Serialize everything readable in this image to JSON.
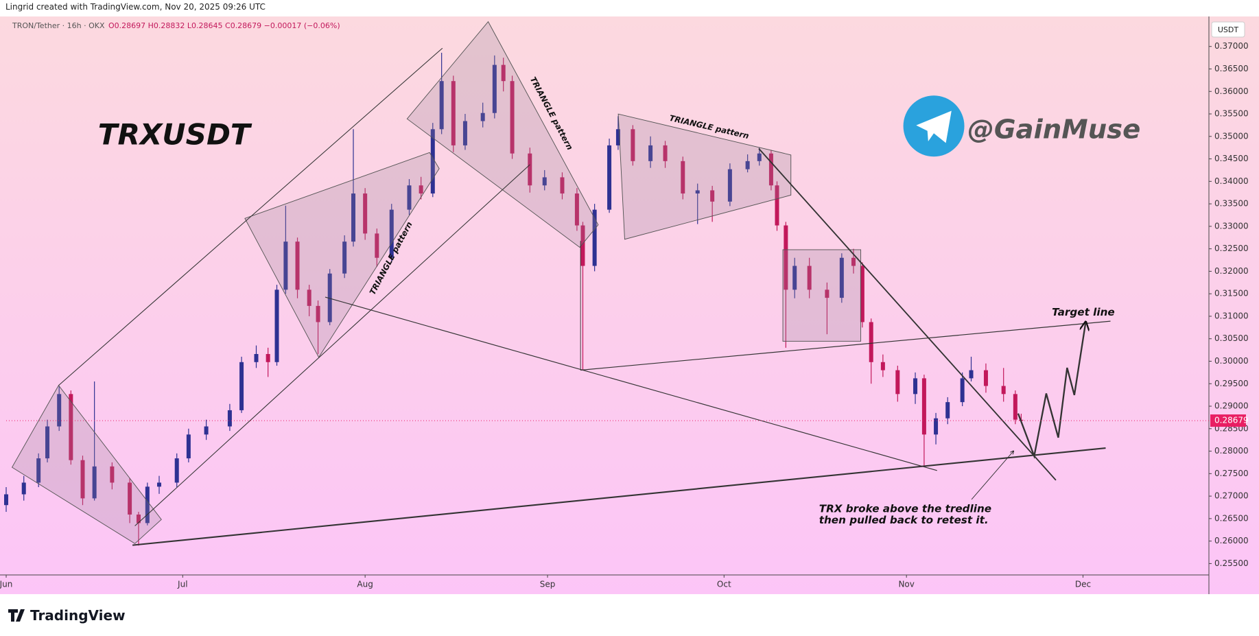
{
  "header": {
    "credit": "Lingrid created with TradingView.com, Nov 20, 2025 09:26 UTC"
  },
  "chart_data": {
    "type": "candlestick",
    "symbol": "TRON/Tether · 16h · OKX",
    "ohlc_text": "O0.28697 H0.28832 L0.28645 C0.28679 −0.00017 (−0.06%)",
    "currency": "USDT",
    "title": "TRXUSDT",
    "watermark": "@GainMuse",
    "annotations": [
      "TRIANGLE pattern",
      "TRIANGLE pattern",
      "TRIANGLE pattern",
      "Target line",
      "TRX broke above the tredline",
      "then pulled back to retest it."
    ],
    "up_color": "#2e3192",
    "down_color": "#c2185b",
    "x": [
      0,
      3,
      5.5,
      7,
      9,
      11,
      13,
      15,
      18,
      21,
      22.5,
      24,
      26,
      29,
      31,
      34,
      38,
      40,
      42.5,
      44.5,
      46,
      47.5,
      49.5,
      51.5,
      53,
      55,
      57.5,
      59,
      61,
      63,
      65.5,
      68.5,
      70.5,
      72.5,
      74,
      76,
      78,
      81,
      83,
      84.5,
      86,
      89,
      91.5,
      94.5,
      97,
      98,
      100,
      102.5,
      104,
      106.5,
      109.5,
      112,
      115,
      117.5,
      120,
      123,
      126,
      128,
      130,
      131,
      132.5,
      134,
      136.5,
      139.5,
      142,
      144,
      145.5,
      147,
      149,
      151.5,
      154.5,
      156,
      158,
      160,
      162.5,
      164,
      166.5,
      169.5,
      171.5,
      172.5
    ],
    "open": [
      0.268,
      0.2704,
      0.273,
      0.2784,
      0.2855,
      0.2927,
      0.278,
      0.2695,
      0.2766,
      0.273,
      0.2659,
      0.264,
      0.2721,
      0.273,
      0.2784,
      0.2837,
      0.2855,
      0.2891,
      0.2998,
      0.3016,
      0.2998,
      0.3159,
      0.3266,
      0.3159,
      0.3123,
      0.3087,
      0.3195,
      0.3266,
      0.3373,
      0.3284,
      0.323,
      0.3337,
      0.3391,
      0.3373,
      0.3516,
      0.3623,
      0.348,
      0.3534,
      0.3552,
      0.3659,
      0.3623,
      0.3462,
      0.3391,
      0.3409,
      0.3373,
      0.3302,
      0.3212,
      0.3337,
      0.348,
      0.3516,
      0.3445,
      0.348,
      0.3445,
      0.3373,
      0.338,
      0.3355,
      0.3427,
      0.3445,
      0.3462,
      0.3391,
      0.3302,
      0.3159,
      0.3212,
      0.3159,
      0.3141,
      0.323,
      0.3212,
      0.3087,
      0.2998,
      0.298,
      0.2927,
      0.2962,
      0.2837,
      0.2873,
      0.2909,
      0.2962,
      0.298,
      0.2945,
      0.2927,
      0.28697
    ],
    "high": [
      0.272,
      0.2745,
      0.2795,
      0.287,
      0.2945,
      0.2935,
      0.279,
      0.2955,
      0.2775,
      0.274,
      0.2665,
      0.273,
      0.2745,
      0.2795,
      0.285,
      0.287,
      0.2905,
      0.301,
      0.3035,
      0.303,
      0.317,
      0.3346,
      0.3275,
      0.317,
      0.3135,
      0.3205,
      0.328,
      0.3516,
      0.3385,
      0.3295,
      0.335,
      0.3405,
      0.341,
      0.353,
      0.3686,
      0.3635,
      0.355,
      0.3575,
      0.368,
      0.3675,
      0.3635,
      0.3475,
      0.3425,
      0.342,
      0.3385,
      0.331,
      0.335,
      0.3495,
      0.3545,
      0.3525,
      0.35,
      0.349,
      0.3455,
      0.3395,
      0.339,
      0.344,
      0.346,
      0.3475,
      0.347,
      0.34,
      0.331,
      0.323,
      0.323,
      0.3175,
      0.324,
      0.325,
      0.322,
      0.3095,
      0.3015,
      0.299,
      0.2975,
      0.297,
      0.2885,
      0.292,
      0.2975,
      0.301,
      0.2995,
      0.2985,
      0.2935,
      0.28832
    ],
    "low": [
      0.2665,
      0.269,
      0.272,
      0.2775,
      0.2845,
      0.277,
      0.268,
      0.269,
      0.2715,
      0.264,
      0.259,
      0.2635,
      0.2705,
      0.272,
      0.2775,
      0.2825,
      0.2845,
      0.2885,
      0.2985,
      0.2965,
      0.299,
      0.315,
      0.314,
      0.31,
      0.3016,
      0.308,
      0.3185,
      0.3255,
      0.327,
      0.321,
      0.322,
      0.3325,
      0.336,
      0.3365,
      0.3505,
      0.3465,
      0.347,
      0.352,
      0.354,
      0.36,
      0.345,
      0.3375,
      0.338,
      0.336,
      0.329,
      0.298,
      0.32,
      0.333,
      0.347,
      0.3435,
      0.343,
      0.343,
      0.336,
      0.3305,
      0.331,
      0.3345,
      0.342,
      0.3435,
      0.338,
      0.329,
      0.303,
      0.314,
      0.314,
      0.306,
      0.313,
      0.3195,
      0.3075,
      0.295,
      0.2965,
      0.291,
      0.2905,
      0.2766,
      0.2815,
      0.286,
      0.29,
      0.2955,
      0.293,
      0.291,
      0.286,
      0.28645
    ],
    "close": [
      0.2704,
      0.273,
      0.2784,
      0.2855,
      0.2927,
      0.278,
      0.2695,
      0.2766,
      0.273,
      0.2659,
      0.264,
      0.2721,
      0.273,
      0.2784,
      0.2837,
      0.2855,
      0.2891,
      0.2998,
      0.3016,
      0.2998,
      0.3159,
      0.3266,
      0.3159,
      0.3123,
      0.3087,
      0.3195,
      0.3266,
      0.3373,
      0.3284,
      0.323,
      0.3337,
      0.3391,
      0.3373,
      0.3516,
      0.3623,
      0.348,
      0.3534,
      0.3552,
      0.3659,
      0.3623,
      0.3462,
      0.3391,
      0.3409,
      0.3373,
      0.3302,
      0.3212,
      0.3337,
      0.348,
      0.3516,
      0.3445,
      0.348,
      0.3445,
      0.3373,
      0.338,
      0.3355,
      0.3427,
      0.3445,
      0.3462,
      0.3391,
      0.3302,
      0.3159,
      0.3212,
      0.3159,
      0.3141,
      0.323,
      0.3212,
      0.3087,
      0.2998,
      0.298,
      0.2927,
      0.2962,
      0.2837,
      0.2873,
      0.2909,
      0.2962,
      0.298,
      0.2945,
      0.2927,
      0.287,
      0.28679
    ],
    "last_price": 0.28679,
    "last_price_color": "#e91e63",
    "xlim": [
      0,
      204.4
    ],
    "xticks": [
      {
        "value": 0,
        "label": "Jun"
      },
      {
        "value": 30,
        "label": "Jul"
      },
      {
        "value": 61,
        "label": "Aug"
      },
      {
        "value": 92,
        "label": "Sep"
      },
      {
        "value": 122,
        "label": "Oct"
      },
      {
        "value": 153,
        "label": "Nov"
      },
      {
        "value": 183,
        "label": "Dec"
      }
    ],
    "ylim": [
      0.25247,
      0.37667
    ],
    "yticks": [
      {
        "value": 0.255,
        "label": "0.25500"
      },
      {
        "value": 0.26,
        "label": "0.26000"
      },
      {
        "value": 0.265,
        "label": "0.26500"
      },
      {
        "value": 0.27,
        "label": "0.27000"
      },
      {
        "value": 0.275,
        "label": "0.27500"
      },
      {
        "value": 0.28,
        "label": "0.28000"
      },
      {
        "value": 0.285,
        "label": "0.28500"
      },
      {
        "value": 0.29,
        "label": "0.29000"
      },
      {
        "value": 0.295,
        "label": "0.29500"
      },
      {
        "value": 0.3,
        "label": "0.30000"
      },
      {
        "value": 0.305,
        "label": "0.30500"
      },
      {
        "value": 0.31,
        "label": "0.31000"
      },
      {
        "value": 0.315,
        "label": "0.31500"
      },
      {
        "value": 0.32,
        "label": "0.32000"
      },
      {
        "value": 0.325,
        "label": "0.32500"
      },
      {
        "value": 0.33,
        "label": "0.33000"
      },
      {
        "value": 0.335,
        "label": "0.33500"
      },
      {
        "value": 0.34,
        "label": "0.34000"
      },
      {
        "value": 0.345,
        "label": "0.34500"
      },
      {
        "value": 0.35,
        "label": "0.35000"
      },
      {
        "value": 0.355,
        "label": "0.35500"
      },
      {
        "value": 0.36,
        "label": "0.36000"
      },
      {
        "value": 0.365,
        "label": "0.36500"
      },
      {
        "value": 0.37,
        "label": "0.37000"
      }
    ]
  },
  "footer": {
    "brand": "TradingView"
  }
}
